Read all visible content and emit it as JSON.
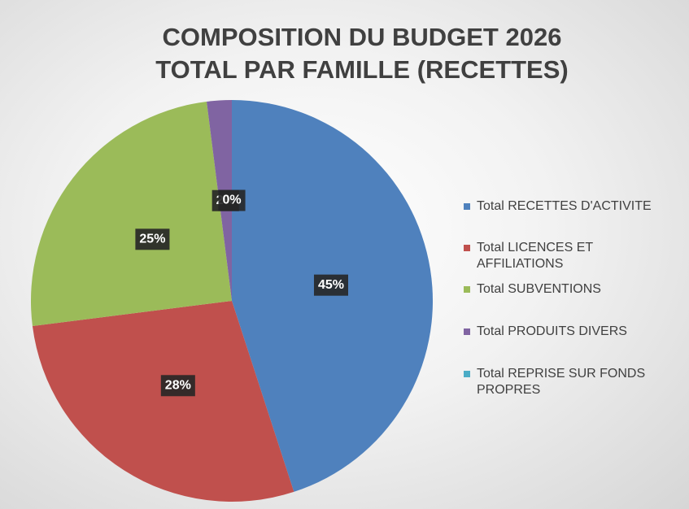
{
  "chart_data": {
    "type": "pie",
    "title": "COMPOSITION DU BUDGET 2026\nTOTAL PAR FAMILLE (RECETTES)",
    "categories": [
      "Total RECETTES D'ACTIVITE",
      "Total LICENCES ET AFFILIATIONS",
      "Total SUBVENTIONS",
      "Total PRODUITS DIVERS",
      "Total REPRISE SUR FONDS PROPRES"
    ],
    "values": [
      45,
      28,
      25,
      2,
      0
    ],
    "value_labels": [
      "45%",
      "28%",
      "25%",
      "2%",
      "0%"
    ],
    "colors": [
      "#4f81bd",
      "#c0504d",
      "#9bbb59",
      "#8064a2",
      "#4bacc6"
    ],
    "legend": "right"
  }
}
